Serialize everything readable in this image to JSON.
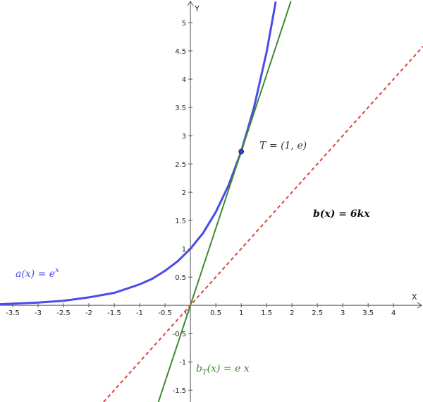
{
  "chart_data": {
    "type": "function",
    "x_label": "X",
    "y_label": "Y",
    "xlim": [
      -3.75,
      4.58
    ],
    "ylim": [
      -1.71,
      5.4
    ],
    "xticks": [
      -3.5,
      -3,
      -2.5,
      -2,
      -1.5,
      -1,
      -0.5,
      0.5,
      1,
      1.5,
      2,
      2.5,
      3,
      3.5,
      4
    ],
    "yticks": [
      -1.5,
      -1,
      -0.5,
      0.5,
      1,
      1.5,
      2,
      2.5,
      3,
      3.5,
      4,
      4.5,
      5
    ],
    "origin_label": "0",
    "series": [
      {
        "color": "#4b4be8",
        "dash": false,
        "x": [
          -3.75,
          -3,
          -2.5,
          -2,
          -1.5,
          -1,
          -0.75,
          -0.5,
          -0.25,
          0,
          0.25,
          0.5,
          0.75,
          1,
          1.25,
          1.5,
          1.68
        ],
        "values": [
          0.02,
          0.05,
          0.08,
          0.14,
          0.22,
          0.37,
          0.47,
          0.61,
          0.78,
          1,
          1.28,
          1.65,
          2.12,
          2.72,
          3.49,
          4.48,
          5.37
        ],
        "label": {
          "base": "a(x)  =  e",
          "sup": "x"
        }
      },
      {
        "color": "#3f8a33",
        "dash": false,
        "x": [
          -0.63,
          1.98
        ],
        "values": [
          -1.71,
          5.38
        ],
        "label": {
          "base": "b",
          "sub": "T",
          "rest": "(x)  =  e x"
        }
      },
      {
        "color": "#d9453c",
        "dash": true,
        "x": [
          -1.71,
          4.58
        ],
        "values": [
          -1.71,
          4.58
        ],
        "label": {
          "base": "b(x) = 6kx"
        }
      }
    ],
    "point": {
      "x": 1,
      "y": 2.72,
      "label": "T = (1, e)",
      "color": "#3b3bd6"
    }
  }
}
